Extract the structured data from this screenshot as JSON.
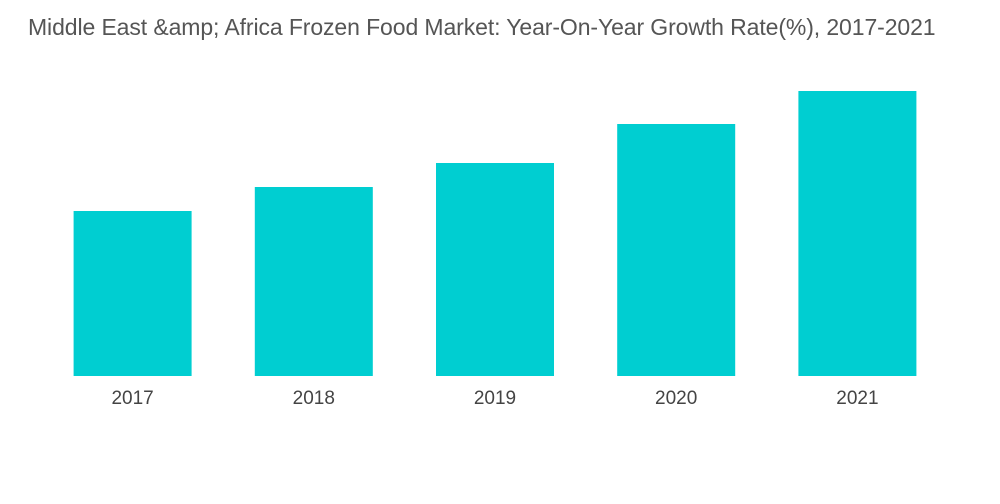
{
  "chart_data": {
    "type": "bar",
    "title": "Middle East &amp; Africa Frozen Food Market: Year-On-Year Growth Rate(%), 2017-2021",
    "xlabel": "",
    "ylabel": "",
    "categories": [
      "2017",
      "2018",
      "2019",
      "2020",
      "2021"
    ],
    "values": [
      5.5,
      6.3,
      7.1,
      8.4,
      9.5
    ],
    "ylim": [
      0,
      10
    ],
    "grid": false,
    "legend": "none",
    "bar_color": "#00CED1"
  }
}
